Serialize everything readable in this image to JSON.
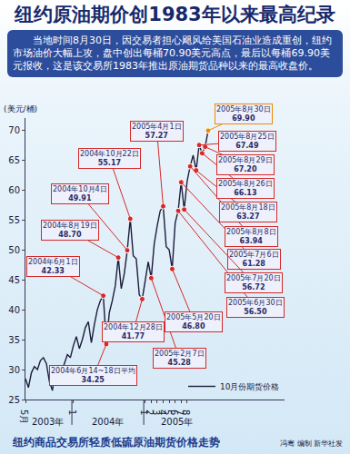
{
  "chart_data": {
    "type": "line",
    "title": "纽约原油期价创1983年以来最高纪录",
    "subtitle": "当地时间8月30日，因交易者担心飓风给美国石油业造成重创，纽约市场油价大幅上攻，盘中创出每桶70.90美元高点，最后以每桶69.90美元报收，这是该交易所1983年推出原油期货品种以来的最高收盘价。",
    "y_label": "(美元/桶)",
    "caption": "纽约商品交易所轻质低硫原油期货价格走势",
    "credit": "冯骞 编制 新华社发",
    "categories": [
      "5月",
      null,
      null,
      null,
      null,
      null,
      null,
      null,
      null,
      null,
      null,
      null,
      null,
      null,
      null,
      null,
      "1",
      null,
      null,
      null,
      null,
      null,
      null,
      null,
      null,
      null,
      null,
      null,
      null,
      null,
      null,
      null,
      null,
      null,
      null,
      null,
      null,
      null,
      null,
      null,
      "1",
      null,
      "2",
      null,
      "3",
      null,
      "4",
      null,
      "5",
      null,
      "6",
      null,
      "7",
      null,
      "8",
      null,
      null,
      null,
      null,
      null,
      null,
      null
    ],
    "year_labels": [
      "2003年",
      "2004年",
      "2005年"
    ],
    "series": [
      {
        "name": "10月份期货价格",
        "color": "#1c1c3a",
        "values": [
          28.5,
          27.0,
          29.5,
          30.5,
          30.0,
          31.5,
          32.0,
          31.0,
          28.0,
          26.5,
          30.0,
          30.5,
          29.5,
          31.0,
          32.5,
          32.0,
          34.0,
          35.5,
          33.5,
          35.0,
          37.0,
          38.0,
          34.5,
          37.5,
          40.0,
          41.5,
          42.33,
          34.25,
          39.5,
          41.5,
          44.0,
          48.7,
          43.5,
          46.0,
          49.91,
          55.17,
          49.0,
          48.5,
          42.5,
          41.77,
          45.0,
          48.0,
          45.28,
          51.0,
          54.0,
          56.5,
          57.27,
          50.5,
          50.0,
          46.8,
          54.5,
          56.5,
          61.28,
          56.72,
          61.5,
          63.94,
          65.8,
          63.27,
          67.49,
          66.13,
          67.2,
          69.9
        ]
      }
    ],
    "ylim": [
      25,
      72
    ],
    "yticks": [
      25,
      30,
      35,
      40,
      45,
      50,
      55,
      60,
      65,
      70
    ],
    "grid": false,
    "legend": "bottom-right",
    "annotations": [
      {
        "x": 27,
        "y": 34.25,
        "date": "2004年6月14~18日平均",
        "value_label": "34.25",
        "color": "#d42a2a"
      },
      {
        "x": 26,
        "y": 42.33,
        "date": "2004年6月1日",
        "value_label": "42.33",
        "color": "#d42a2a"
      },
      {
        "x": 31,
        "y": 48.7,
        "date": "2004年8月19日",
        "value_label": "48.70",
        "color": "#d42a2a"
      },
      {
        "x": 34,
        "y": 49.91,
        "date": "2004年10月4日",
        "value_label": "49.91",
        "color": "#d42a2a"
      },
      {
        "x": 35,
        "y": 55.17,
        "date": "2004年10月22日",
        "value_label": "55.17",
        "color": "#d42a2a"
      },
      {
        "x": 39,
        "y": 41.77,
        "date": "2004年12月28日",
        "value_label": "41.77",
        "color": "#d42a2a"
      },
      {
        "x": 42,
        "y": 45.28,
        "date": "2005年2月7日",
        "value_label": "45.28",
        "color": "#d42a2a"
      },
      {
        "x": 46,
        "y": 57.27,
        "date": "2005年4月1日",
        "value_label": "57.27",
        "color": "#d42a2a"
      },
      {
        "x": 49,
        "y": 46.8,
        "date": "2005年5月20日",
        "value_label": "46.80",
        "color": "#d42a2a"
      },
      {
        "x": 51,
        "y": 56.5,
        "date": "2005年6月30日",
        "value_label": "56.50",
        "color": "#d42a2a"
      },
      {
        "x": 52,
        "y": 61.28,
        "date": "2005年7月6日",
        "value_label": "61.28",
        "color": "#d42a2a"
      },
      {
        "x": 53,
        "y": 56.72,
        "date": "2005年7月20日",
        "value_label": "56.72",
        "color": "#d42a2a"
      },
      {
        "x": 55,
        "y": 63.94,
        "date": "2005年8月8日",
        "value_label": "63.94",
        "color": "#d42a2a"
      },
      {
        "x": 57,
        "y": 63.27,
        "date": "2005年8月18日",
        "value_label": "63.27",
        "color": "#d42a2a"
      },
      {
        "x": 58,
        "y": 67.49,
        "date": "2005年8月25日",
        "value_label": "67.49",
        "color": "#d42a2a"
      },
      {
        "x": 59,
        "y": 66.13,
        "date": "2005年8月26日",
        "value_label": "66.13",
        "color": "#d42a2a"
      },
      {
        "x": 60,
        "y": 67.2,
        "date": "2005年8月29日",
        "value_label": "67.20",
        "color": "#d42a2a"
      },
      {
        "x": 61,
        "y": 69.9,
        "date": "2005年8月30日",
        "value_label": "69.90",
        "color": "#f08a00"
      }
    ]
  }
}
